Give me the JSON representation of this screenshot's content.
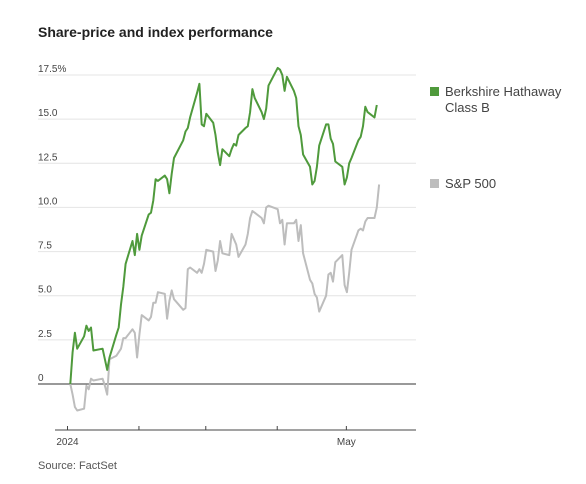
{
  "title": "Share-price and index performance",
  "source": "Source: FactSet",
  "chart_data": {
    "type": "line",
    "title": "Share-price and index performance",
    "xlabel": "",
    "ylabel": "",
    "ylim": [
      -2.5,
      17.5
    ],
    "y_ticks": [
      {
        "value": 17.5,
        "label": "17.5%"
      },
      {
        "value": 15.0,
        "label": "15.0"
      },
      {
        "value": 12.5,
        "label": "12.5"
      },
      {
        "value": 10.0,
        "label": "10.0"
      },
      {
        "value": 7.5,
        "label": "7.5"
      },
      {
        "value": 5.0,
        "label": "5.0"
      },
      {
        "value": 2.5,
        "label": "2.5"
      },
      {
        "value": 0,
        "label": "0"
      }
    ],
    "x_range": [
      "2024-01-01",
      "2024-05-31"
    ],
    "x_ticks": [
      {
        "date": "2024-01-01",
        "label": "2024"
      },
      {
        "date": "2024-02-01",
        "label": ""
      },
      {
        "date": "2024-03-01",
        "label": ""
      },
      {
        "date": "2024-04-01",
        "label": ""
      },
      {
        "date": "2024-05-01",
        "label": "May"
      }
    ],
    "grid": "horizontal",
    "legend_position": "right",
    "series": [
      {
        "name": "Berkshire Hathaway Class B",
        "color": "#4f9a3c",
        "points": [
          [
            "2024-01-02",
            0.0
          ],
          [
            "2024-01-03",
            1.8
          ],
          [
            "2024-01-04",
            2.9
          ],
          [
            "2024-01-05",
            2.0
          ],
          [
            "2024-01-08",
            2.7
          ],
          [
            "2024-01-09",
            3.3
          ],
          [
            "2024-01-10",
            3.0
          ],
          [
            "2024-01-11",
            3.2
          ],
          [
            "2024-01-12",
            1.9
          ],
          [
            "2024-01-16",
            2.0
          ],
          [
            "2024-01-17",
            1.4
          ],
          [
            "2024-01-18",
            0.8
          ],
          [
            "2024-01-19",
            1.5
          ],
          [
            "2024-01-22",
            2.8
          ],
          [
            "2024-01-23",
            3.2
          ],
          [
            "2024-01-24",
            4.5
          ],
          [
            "2024-01-25",
            5.5
          ],
          [
            "2024-01-26",
            6.8
          ],
          [
            "2024-01-29",
            8.1
          ],
          [
            "2024-01-30",
            7.3
          ],
          [
            "2024-01-31",
            8.5
          ],
          [
            "2024-02-01",
            7.6
          ],
          [
            "2024-02-02",
            8.4
          ],
          [
            "2024-02-05",
            9.6
          ],
          [
            "2024-02-06",
            9.7
          ],
          [
            "2024-02-07",
            10.4
          ],
          [
            "2024-02-08",
            11.6
          ],
          [
            "2024-02-09",
            11.5
          ],
          [
            "2024-02-12",
            11.8
          ],
          [
            "2024-02-13",
            11.6
          ],
          [
            "2024-02-14",
            10.8
          ],
          [
            "2024-02-15",
            11.9
          ],
          [
            "2024-02-16",
            12.8
          ],
          [
            "2024-02-20",
            13.8
          ],
          [
            "2024-02-21",
            14.3
          ],
          [
            "2024-02-22",
            14.5
          ],
          [
            "2024-02-23",
            15.1
          ],
          [
            "2024-02-26",
            16.5
          ],
          [
            "2024-02-27",
            17.0
          ],
          [
            "2024-02-28",
            14.7
          ],
          [
            "2024-02-29",
            14.6
          ],
          [
            "2024-03-01",
            15.3
          ],
          [
            "2024-03-04",
            14.8
          ],
          [
            "2024-03-05",
            14.1
          ],
          [
            "2024-03-06",
            13.1
          ],
          [
            "2024-03-07",
            12.4
          ],
          [
            "2024-03-08",
            13.3
          ],
          [
            "2024-03-11",
            12.9
          ],
          [
            "2024-03-12",
            13.3
          ],
          [
            "2024-03-13",
            13.6
          ],
          [
            "2024-03-14",
            13.5
          ],
          [
            "2024-03-15",
            14.1
          ],
          [
            "2024-03-18",
            14.5
          ],
          [
            "2024-03-19",
            14.6
          ],
          [
            "2024-03-20",
            15.4
          ],
          [
            "2024-03-21",
            16.7
          ],
          [
            "2024-03-22",
            16.2
          ],
          [
            "2024-03-25",
            15.4
          ],
          [
            "2024-03-26",
            15.0
          ],
          [
            "2024-03-27",
            15.6
          ],
          [
            "2024-03-28",
            16.9
          ],
          [
            "2024-04-01",
            17.9
          ],
          [
            "2024-04-02",
            17.8
          ],
          [
            "2024-04-03",
            17.5
          ],
          [
            "2024-04-04",
            16.6
          ],
          [
            "2024-04-05",
            17.4
          ],
          [
            "2024-04-08",
            16.6
          ],
          [
            "2024-04-09",
            16.2
          ],
          [
            "2024-04-10",
            14.6
          ],
          [
            "2024-04-11",
            14.1
          ],
          [
            "2024-04-12",
            13.0
          ],
          [
            "2024-04-15",
            12.3
          ],
          [
            "2024-04-16",
            11.3
          ],
          [
            "2024-04-17",
            11.5
          ],
          [
            "2024-04-18",
            12.3
          ],
          [
            "2024-04-19",
            13.5
          ],
          [
            "2024-04-22",
            14.7
          ],
          [
            "2024-04-23",
            14.7
          ],
          [
            "2024-04-24",
            13.9
          ],
          [
            "2024-04-25",
            13.6
          ],
          [
            "2024-04-26",
            12.6
          ],
          [
            "2024-04-29",
            12.3
          ],
          [
            "2024-04-30",
            11.3
          ],
          [
            "2024-05-01",
            11.7
          ],
          [
            "2024-05-02",
            12.5
          ],
          [
            "2024-05-03",
            12.8
          ],
          [
            "2024-05-06",
            13.8
          ],
          [
            "2024-05-07",
            14.0
          ],
          [
            "2024-05-08",
            14.6
          ],
          [
            "2024-05-09",
            15.7
          ],
          [
            "2024-05-10",
            15.4
          ],
          [
            "2024-05-13",
            15.1
          ],
          [
            "2024-05-14",
            15.8
          ]
        ]
      },
      {
        "name": "S&P 500",
        "color": "#bdbdbd",
        "points": [
          [
            "2024-01-02",
            0.0
          ],
          [
            "2024-01-03",
            -0.6
          ],
          [
            "2024-01-04",
            -1.3
          ],
          [
            "2024-01-05",
            -1.5
          ],
          [
            "2024-01-08",
            -1.4
          ],
          [
            "2024-01-09",
            -0.1
          ],
          [
            "2024-01-10",
            -0.3
          ],
          [
            "2024-01-11",
            0.3
          ],
          [
            "2024-01-12",
            0.2
          ],
          [
            "2024-01-16",
            0.3
          ],
          [
            "2024-01-17",
            -0.1
          ],
          [
            "2024-01-18",
            -0.6
          ],
          [
            "2024-01-19",
            1.4
          ],
          [
            "2024-01-22",
            1.6
          ],
          [
            "2024-01-23",
            1.8
          ],
          [
            "2024-01-24",
            2.0
          ],
          [
            "2024-01-25",
            2.6
          ],
          [
            "2024-01-26",
            2.6
          ],
          [
            "2024-01-29",
            3.1
          ],
          [
            "2024-01-30",
            2.9
          ],
          [
            "2024-01-31",
            1.5
          ],
          [
            "2024-02-01",
            2.8
          ],
          [
            "2024-02-02",
            3.9
          ],
          [
            "2024-02-05",
            3.6
          ],
          [
            "2024-02-06",
            3.8
          ],
          [
            "2024-02-07",
            4.6
          ],
          [
            "2024-02-08",
            4.6
          ],
          [
            "2024-02-09",
            5.2
          ],
          [
            "2024-02-12",
            5.1
          ],
          [
            "2024-02-13",
            3.7
          ],
          [
            "2024-02-14",
            4.7
          ],
          [
            "2024-02-15",
            5.3
          ],
          [
            "2024-02-16",
            4.8
          ],
          [
            "2024-02-20",
            4.2
          ],
          [
            "2024-02-21",
            4.3
          ],
          [
            "2024-02-22",
            6.5
          ],
          [
            "2024-02-23",
            6.6
          ],
          [
            "2024-02-26",
            6.3
          ],
          [
            "2024-02-27",
            6.5
          ],
          [
            "2024-02-28",
            6.3
          ],
          [
            "2024-02-29",
            6.8
          ],
          [
            "2024-03-01",
            7.6
          ],
          [
            "2024-03-04",
            7.5
          ],
          [
            "2024-03-05",
            6.4
          ],
          [
            "2024-03-06",
            7.0
          ],
          [
            "2024-03-07",
            8.1
          ],
          [
            "2024-03-08",
            7.4
          ],
          [
            "2024-03-11",
            7.3
          ],
          [
            "2024-03-12",
            8.5
          ],
          [
            "2024-03-13",
            8.2
          ],
          [
            "2024-03-14",
            7.9
          ],
          [
            "2024-03-15",
            7.2
          ],
          [
            "2024-03-18",
            7.9
          ],
          [
            "2024-03-19",
            8.5
          ],
          [
            "2024-03-20",
            9.4
          ],
          [
            "2024-03-21",
            9.8
          ],
          [
            "2024-03-22",
            9.7
          ],
          [
            "2024-03-25",
            9.4
          ],
          [
            "2024-03-26",
            9.1
          ],
          [
            "2024-03-27",
            10.0
          ],
          [
            "2024-03-28",
            10.1
          ],
          [
            "2024-04-01",
            9.9
          ],
          [
            "2024-04-02",
            9.1
          ],
          [
            "2024-04-03",
            9.3
          ],
          [
            "2024-04-04",
            7.9
          ],
          [
            "2024-04-05",
            9.1
          ],
          [
            "2024-04-08",
            9.1
          ],
          [
            "2024-04-09",
            9.3
          ],
          [
            "2024-04-10",
            8.1
          ],
          [
            "2024-04-11",
            9.0
          ],
          [
            "2024-04-12",
            7.4
          ],
          [
            "2024-04-15",
            5.9
          ],
          [
            "2024-04-16",
            5.7
          ],
          [
            "2024-04-17",
            5.1
          ],
          [
            "2024-04-18",
            4.9
          ],
          [
            "2024-04-19",
            4.1
          ],
          [
            "2024-04-22",
            5.0
          ],
          [
            "2024-04-23",
            6.2
          ],
          [
            "2024-04-24",
            6.3
          ],
          [
            "2024-04-25",
            5.8
          ],
          [
            "2024-04-26",
            6.9
          ],
          [
            "2024-04-29",
            7.3
          ],
          [
            "2024-04-30",
            5.6
          ],
          [
            "2024-05-01",
            5.2
          ],
          [
            "2024-05-02",
            6.3
          ],
          [
            "2024-05-03",
            7.6
          ],
          [
            "2024-05-06",
            8.7
          ],
          [
            "2024-05-07",
            8.8
          ],
          [
            "2024-05-08",
            8.7
          ],
          [
            "2024-05-09",
            9.2
          ],
          [
            "2024-05-10",
            9.4
          ],
          [
            "2024-05-13",
            9.4
          ],
          [
            "2024-05-14",
            10.0
          ],
          [
            "2024-05-15",
            11.3
          ]
        ]
      }
    ]
  }
}
